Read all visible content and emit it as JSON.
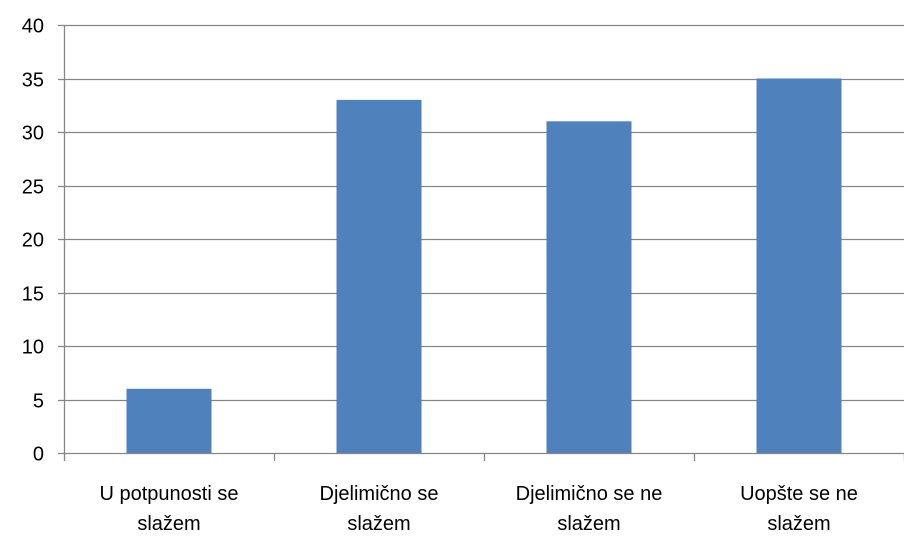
{
  "chart_data": {
    "type": "bar",
    "categories": [
      [
        "U potpunosti se",
        "slažem"
      ],
      [
        "Djelimično se",
        "slažem"
      ],
      [
        "Djelimično se ne",
        "slažem"
      ],
      [
        "Uopšte se ne",
        "slažem"
      ]
    ],
    "values": [
      6,
      33,
      31,
      35
    ],
    "title": "",
    "xlabel": "",
    "ylabel": "",
    "ylim": [
      0,
      40
    ],
    "yticks": [
      0,
      5,
      10,
      15,
      20,
      25,
      30,
      35,
      40
    ],
    "grid": true,
    "legend": "none",
    "bar_color": "#4F81BD",
    "grid_color": "#868686",
    "axis_color": "#868686"
  }
}
